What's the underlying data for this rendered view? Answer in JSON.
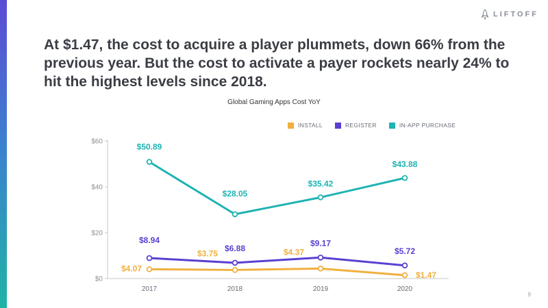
{
  "brand": {
    "name": "LIFTOFF",
    "icon": "rocket-icon"
  },
  "headline": "At $1.47, the cost to acquire a player plummets, down 66% from the previous year. But the cost to activate a payer rockets nearly 24% to hit the highest levels since 2018.",
  "page_number": "9",
  "chart_data": {
    "type": "line",
    "title": "Global Gaming Apps Cost YoY",
    "xlabel": "",
    "ylabel": "",
    "categories": [
      "2017",
      "2018",
      "2019",
      "2020"
    ],
    "ylim": [
      0,
      60
    ],
    "yticks": [
      0,
      20,
      40,
      60
    ],
    "ytick_labels": [
      "$0",
      "$20",
      "$40",
      "$60"
    ],
    "legend_position": "top-right",
    "series": [
      {
        "name": "INSTALL",
        "color": "#f0b03f",
        "values": [
          4.07,
          3.75,
          4.37,
          1.47
        ],
        "labels": [
          "$4.07",
          "$3.75",
          "$4.37",
          "$1.47"
        ]
      },
      {
        "name": "REGISTER",
        "color": "#5b3fd1",
        "values": [
          8.94,
          6.88,
          9.17,
          5.72
        ],
        "labels": [
          "$8.94",
          "$6.88",
          "$9.17",
          "$5.72"
        ]
      },
      {
        "name": "IN-APP PURCHASE",
        "color": "#1fb3b3",
        "values": [
          50.89,
          28.05,
          35.42,
          43.88
        ],
        "labels": [
          "$50.89",
          "$28.05",
          "$35.42",
          "$43.88"
        ]
      }
    ]
  }
}
